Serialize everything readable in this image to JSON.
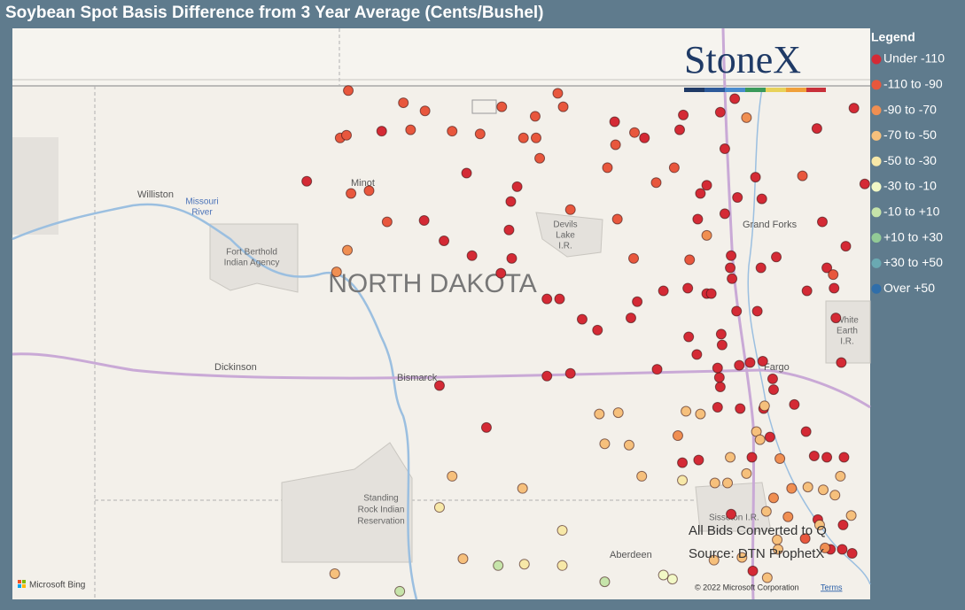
{
  "chart_data": {
    "type": "scatter",
    "title": "Soybean Spot Basis Difference from 3 Year Average (Cents/Bushel)",
    "legend_title": "Legend",
    "legend": "right",
    "xlim": [
      -105,
      -95.5
    ],
    "ylim": [
      45.2,
      49.42
    ],
    "logo": "StoneX",
    "notes": [
      "All Bids Converted to Q",
      "Source: DTN ProphetX"
    ],
    "attribution": {
      "provider": "Microsoft Bing",
      "copyright": "© 2022 Microsoft Corporation",
      "terms": "Terms"
    },
    "map_labels": {
      "state": "NORTH DAKOTA",
      "williston": "Williston",
      "river": [
        "Missouri",
        "River"
      ],
      "fort_berthold": [
        "Fort Berthold",
        "Indian Agency"
      ],
      "minot": "Minot",
      "devils_lake": [
        "Devils",
        "Lake",
        "I.R."
      ],
      "grand_forks": "Grand Forks",
      "white_earth": [
        "White",
        "Earth",
        "I.R."
      ],
      "dickinson": "Dickinson",
      "bismarck": "Bismarck",
      "fargo": "Fargo",
      "standing_rock": [
        "Standing",
        "Rock Indian",
        "Reservation"
      ],
      "sisseton": "Sisseton I.R.",
      "aberdeen": "Aberdeen"
    },
    "series": [
      {
        "name": "Under -110",
        "color": "#d42a35",
        "x": [
          -101.74,
          -100.91,
          -100.44,
          -99.97,
          -100.22,
          -99.91,
          -99.59,
          -99.47,
          -99.5,
          -99.48,
          -99.41,
          -99.08,
          -98.94,
          -98.69,
          -98.52,
          -98.15,
          -98.08,
          -97.79,
          -97.52,
          -97.31,
          -97.26,
          -96.98,
          -96.75,
          -96.71,
          -96.54,
          -97.03,
          -97.04,
          -97.05,
          -97.11,
          -97.11,
          -97.16,
          -97.0,
          -96.77,
          -96.7,
          -96.97,
          -97.31,
          -97.38,
          -97.41,
          -97.61,
          -97.57,
          -98.33,
          -98.0,
          -96.09,
          -95.68,
          -95.56,
          -96.03,
          -95.77,
          -95.98,
          -96.2,
          -95.9,
          -95.88,
          -95.82,
          -96.58,
          -96.57,
          -96.34,
          -96.21,
          -96.12,
          -95.98,
          -95.79,
          -96.68,
          -96.94,
          -97.19,
          -97.16,
          -97.17,
          -97.19,
          -97.42,
          -97.51,
          -97.15,
          -97.14,
          -96.95,
          -96.83,
          -96.69,
          -97.86,
          -98.82,
          -99.08,
          -100.27,
          -99.75,
          -97.58,
          -97.4,
          -96.81,
          -96.61,
          -96.08,
          -95.8,
          -95.94,
          -95.81,
          -95.7,
          -97.04,
          -96.8
        ],
        "values": [
          48.29,
          48.66,
          48.0,
          48.35,
          47.85,
          47.74,
          47.61,
          47.72,
          47.93,
          48.14,
          48.25,
          47.42,
          47.42,
          47.27,
          47.19,
          47.28,
          47.4,
          47.48,
          47.5,
          47.46,
          47.46,
          47.33,
          47.33,
          47.65,
          47.73,
          47.57,
          47.74,
          47.65,
          48.05,
          48.53,
          48.8,
          48.9,
          48.32,
          48.16,
          48.17,
          48.26,
          48.2,
          48.01,
          48.67,
          48.78,
          48.73,
          48.61,
          48.68,
          48.83,
          48.27,
          47.99,
          47.81,
          47.65,
          47.48,
          47.5,
          47.28,
          46.95,
          46.83,
          46.75,
          46.64,
          46.44,
          46.26,
          46.25,
          46.25,
          46.61,
          46.61,
          46.62,
          46.77,
          46.84,
          46.91,
          47.01,
          47.14,
          47.16,
          47.08,
          46.93,
          46.95,
          46.96,
          46.9,
          46.87,
          46.85,
          46.78,
          46.47,
          46.21,
          46.23,
          46.25,
          46.4,
          45.79,
          45.75,
          45.57,
          45.57,
          45.54,
          45.83,
          45.41
        ]
      },
      {
        "name": "-110 to -90",
        "color": "#e8573d",
        "x": [
          -101.28,
          -100.67,
          -100.43,
          -100.59,
          -100.13,
          -99.82,
          -99.58,
          -99.21,
          -98.96,
          -98.9,
          -99.34,
          -99.2,
          -99.16,
          -98.41,
          -98.32,
          -98.11,
          -97.87,
          -97.67,
          -98.3,
          -98.82,
          -98.12,
          -97.5,
          -100.85,
          -101.05,
          -101.25,
          -101.37,
          -101.3,
          -96.25,
          -95.91,
          -96.22
        ],
        "values": [
          48.96,
          48.87,
          48.81,
          48.67,
          48.66,
          48.64,
          48.84,
          48.77,
          48.94,
          48.84,
          48.61,
          48.61,
          48.46,
          48.39,
          48.56,
          48.65,
          48.28,
          48.39,
          48.01,
          48.08,
          47.72,
          47.71,
          47.99,
          48.22,
          48.2,
          48.61,
          48.63,
          48.33,
          47.6,
          45.65
        ]
      },
      {
        "name": "-90 to -70",
        "color": "#f08f52",
        "x": [
          -96.87,
          -97.31,
          -101.29,
          -101.41,
          -97.63,
          -96.5,
          -96.57,
          -96.41,
          -96.37,
          -96.0
        ],
        "values": [
          48.76,
          47.89,
          47.78,
          47.62,
          46.41,
          46.24,
          45.95,
          45.81,
          46.02,
          45.58
        ]
      },
      {
        "name": "-70 to -50",
        "color": "#f6c07c",
        "x": [
          -98.5,
          -98.29,
          -97.54,
          -97.38,
          -96.67,
          -96.76,
          -97.05,
          -96.87,
          -96.72,
          -98.44,
          -98.17,
          -98.03,
          -100.13,
          -99.35,
          -97.22,
          -97.08,
          -96.65,
          -95.71,
          -96.19,
          -96.02,
          -95.89,
          -95.83,
          -96.06,
          -96.53,
          -100.01,
          -101.43,
          -97.23,
          -96.92,
          -96.64,
          -96.52
        ],
        "values": [
          46.57,
          46.58,
          46.59,
          46.57,
          46.63,
          46.44,
          46.25,
          46.13,
          46.38,
          46.35,
          46.34,
          46.11,
          46.11,
          46.02,
          46.06,
          46.06,
          45.85,
          45.82,
          46.03,
          46.01,
          45.97,
          46.11,
          45.75,
          45.64,
          45.5,
          45.39,
          45.49,
          45.51,
          45.36,
          45.57
        ]
      },
      {
        "name": "-50 to -30",
        "color": "#f7e8a8",
        "x": [
          -98.91,
          -99.33,
          -98.91,
          -97.58,
          -100.27
        ],
        "values": [
          45.71,
          45.46,
          45.45,
          46.08,
          45.88
        ]
      },
      {
        "name": "-30 to -10",
        "color": "#f2f8c6",
        "x": [
          -97.79,
          -97.69
        ],
        "values": [
          45.38,
          45.35
        ]
      },
      {
        "name": "-10 to +10",
        "color": "#c6e4aa",
        "x": [
          -99.62,
          -98.44,
          -100.71
        ],
        "values": [
          45.45,
          45.33,
          45.26
        ]
      },
      {
        "name": "+10 to +30",
        "color": "#92ca96",
        "x": [],
        "values": []
      },
      {
        "name": "+30 to +50",
        "color": "#6aa9b2",
        "x": [],
        "values": []
      },
      {
        "name": "Over +50",
        "color": "#2f6eaa",
        "x": [],
        "values": []
      }
    ]
  }
}
